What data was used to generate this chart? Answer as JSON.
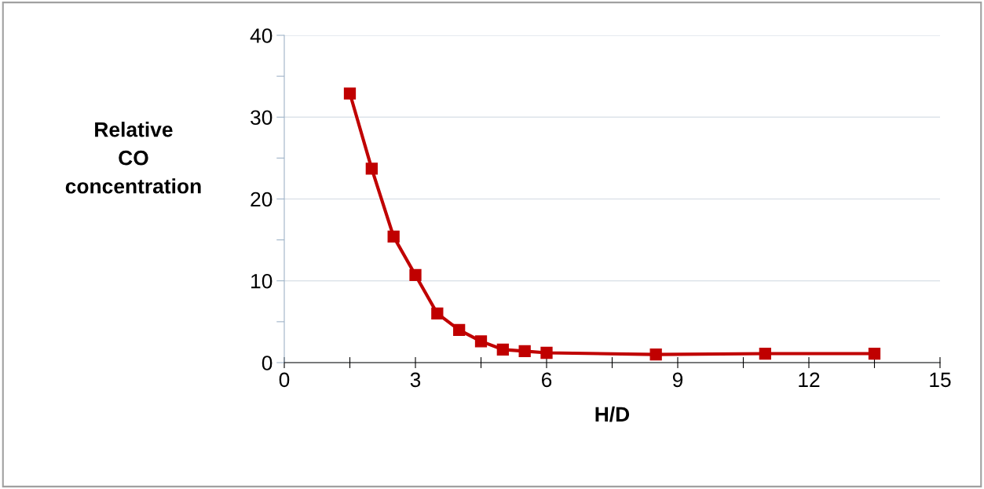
{
  "chart_data": {
    "type": "line",
    "xlabel": "H/D",
    "ylabel": "Relative\nCO\nconcentration",
    "x": [
      1.5,
      2,
      2.5,
      3,
      3.5,
      4,
      4.5,
      5,
      5.5,
      6,
      8.5,
      11,
      13.5
    ],
    "series": [
      {
        "color": "#c00000",
        "values": [
          32.9,
          23.7,
          15.4,
          10.7,
          6.0,
          4.0,
          2.6,
          1.6,
          1.4,
          1.2,
          1.0,
          1.1,
          1.1
        ]
      }
    ],
    "xlim": [
      0,
      15
    ],
    "ylim": [
      0,
      40
    ],
    "xticks": [
      0,
      {
        "value": 1.5,
        "label": null
      },
      3,
      {
        "value": 4.5,
        "label": null
      },
      6,
      {
        "value": 7.5,
        "label": null
      },
      9,
      {
        "value": 10.5,
        "label": null
      },
      12,
      {
        "value": 13.5,
        "label": null
      },
      15
    ],
    "yticks": [
      0,
      {
        "value": 5,
        "label": null
      },
      10,
      {
        "value": 15,
        "label": null
      },
      20,
      {
        "value": 25,
        "label": null
      },
      30,
      {
        "value": 35,
        "label": null
      },
      40
    ],
    "grid": "y",
    "marker": "square",
    "line_style": "solid",
    "legend": false
  }
}
